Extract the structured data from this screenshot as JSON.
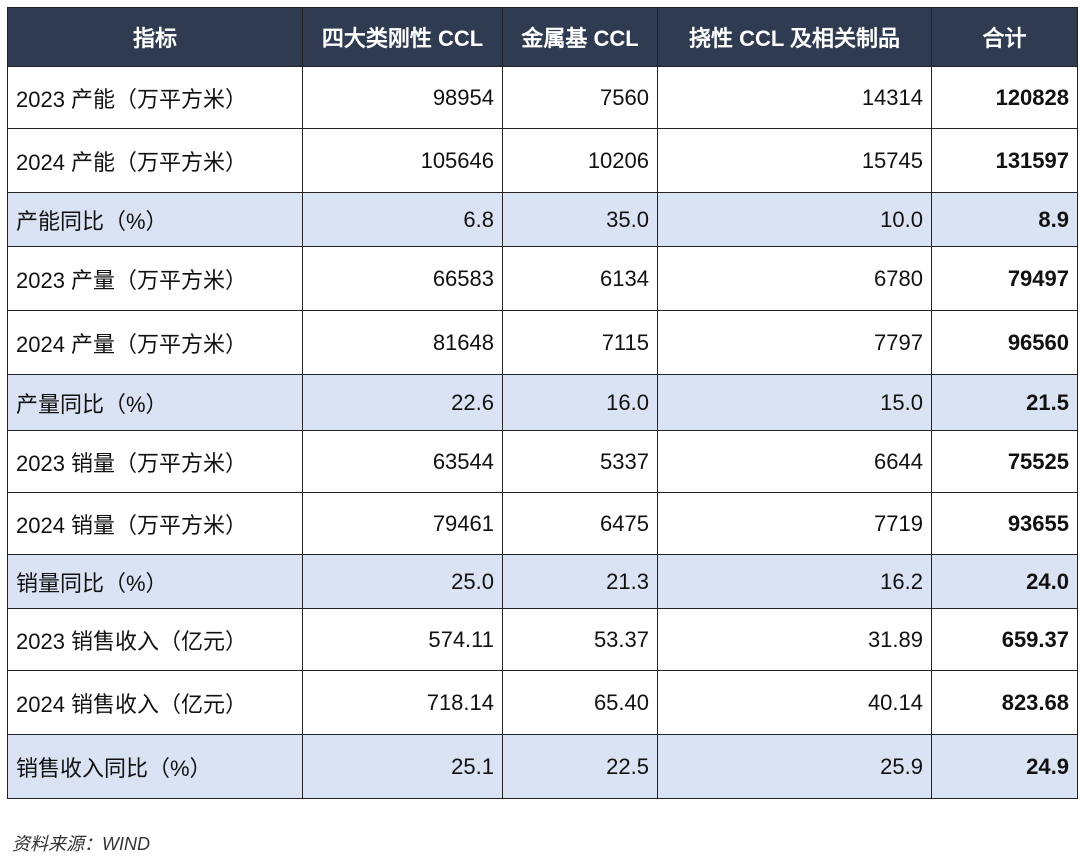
{
  "table": {
    "header": [
      "指标",
      "四大类刚性 CCL",
      "金属基 CCL",
      "挠性 CCL 及相关制品",
      "合计"
    ],
    "rows": [
      [
        "2023 产能（万平方米）",
        "98954",
        "7560",
        "14314",
        "120828"
      ],
      [
        "2024 产能（万平方米）",
        "105646",
        "10206",
        "15745",
        "131597"
      ],
      [
        "产能同比（%）",
        "6.8",
        "35.0",
        "10.0",
        "8.9"
      ],
      [
        "2023 产量（万平方米）",
        "66583",
        "6134",
        "6780",
        "79497"
      ],
      [
        "2024 产量（万平方米）",
        "81648",
        "7115",
        "7797",
        "96560"
      ],
      [
        "产量同比（%）",
        "22.6",
        "16.0",
        "15.0",
        "21.5"
      ],
      [
        "2023 销量（万平方米）",
        "63544",
        "5337",
        "6644",
        "75525"
      ],
      [
        "2024 销量（万平方米）",
        "79461",
        "6475",
        "7719",
        "93655"
      ],
      [
        "销量同比（%）",
        "25.0",
        "21.3",
        "16.2",
        "24.0"
      ],
      [
        "2023 销售收入（亿元）",
        "574.11",
        "53.37",
        "31.89",
        "659.37"
      ],
      [
        "2024 销售收入（亿元）",
        "718.14",
        "65.40",
        "40.14",
        "823.68"
      ],
      [
        "销售收入同比（%）",
        "25.1",
        "22.5",
        "25.9",
        "24.9"
      ]
    ]
  },
  "source": "资料来源：WIND"
}
